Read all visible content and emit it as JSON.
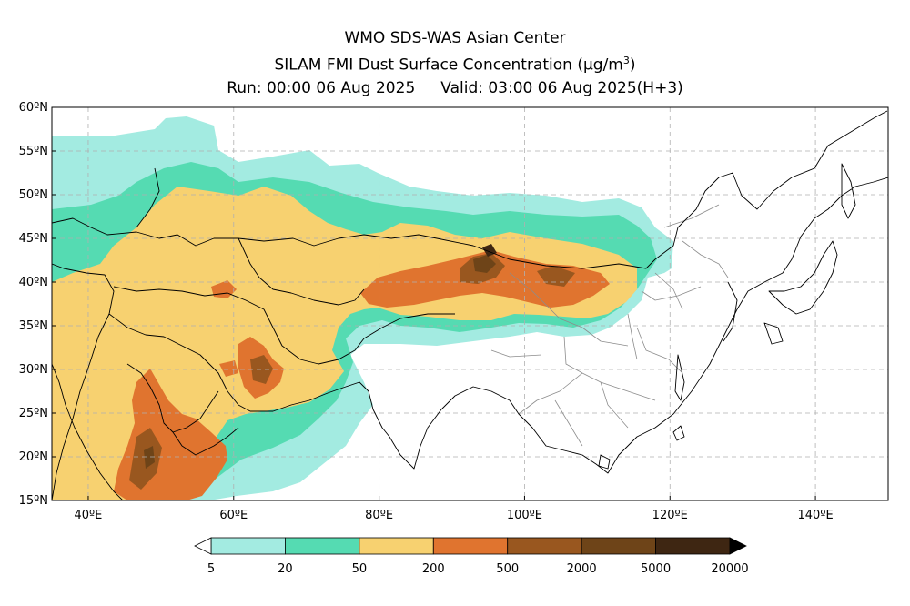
{
  "header": {
    "line1": "WMO SDS-WAS Asian Center",
    "line2_text": "SILAM FMI Dust Surface Concentration",
    "line2_unit": "(µg/m",
    "line2_exp": "3",
    "line2_close": ")",
    "run": "Run: 00:00 06 Aug 2025",
    "valid": "Valid: 03:00 06 Aug 2025(H+3)"
  },
  "map": {
    "lat_labels": [
      "60ºN",
      "55ºN",
      "50ºN",
      "45ºN",
      "40ºN",
      "35ºN",
      "30ºN",
      "25ºN",
      "20ºN",
      "15ºN"
    ],
    "lon_labels": [
      "40ºE",
      "60ºE",
      "80ºE",
      "100ºE",
      "120ºE",
      "140ºE"
    ],
    "lat_values": [
      60,
      55,
      50,
      45,
      40,
      35,
      30,
      25,
      20,
      15
    ],
    "lon_values": [
      40,
      60,
      80,
      100,
      120,
      140
    ],
    "lon_range": [
      35,
      150
    ],
    "lat_range": [
      15,
      60
    ],
    "grid": true
  },
  "colorbar": {
    "ticks": [
      "5",
      "20",
      "50",
      "200",
      "500",
      "2000",
      "5000",
      "20000"
    ],
    "colors": [
      "#a3ebe1",
      "#55dbb2",
      "#f7d170",
      "#e0742f",
      "#99571f",
      "#6e4418",
      "#3e2612"
    ]
  },
  "colors": {
    "band1": "#a3ebe1",
    "band2": "#55dbb2",
    "band3": "#f7d170",
    "band4": "#e0742f",
    "band5": "#99571f",
    "band6": "#6e4418",
    "band7": "#3e2612",
    "border": "#000000",
    "province": "#8c8c8c",
    "grid": "#b0b0b0"
  }
}
